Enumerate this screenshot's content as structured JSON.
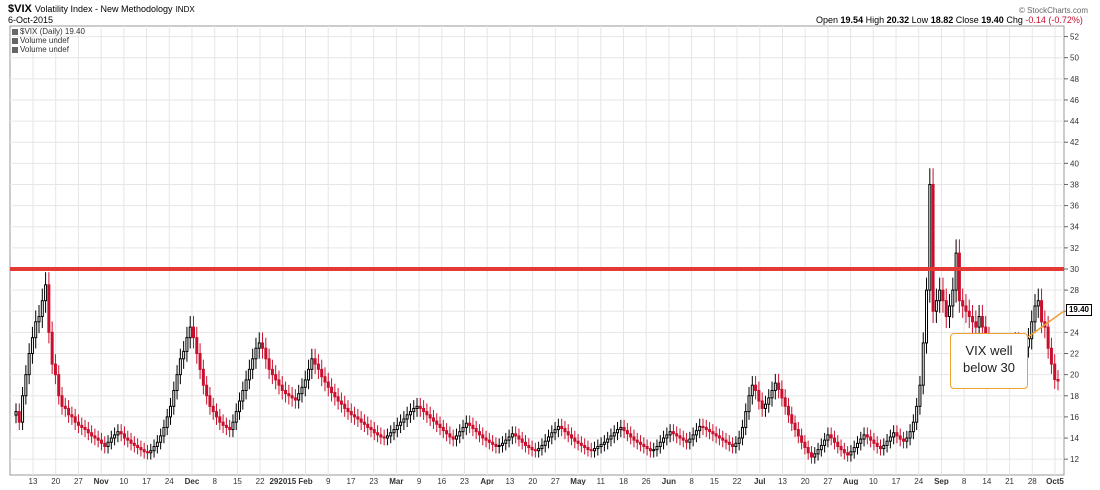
{
  "header": {
    "symbol": "$VIX",
    "name": "Volatility Index - New Methodology",
    "exchange": "INDX",
    "date": "6-Oct-2015",
    "open_label": "Open",
    "open": "19.54",
    "high_label": "High",
    "high": "20.32",
    "low_label": "Low",
    "low": "18.82",
    "close_label": "Close",
    "close": "19.40",
    "chg_label": "Chg",
    "chg": "-0.14 (-0.72%)",
    "copyright": "© StockCharts.com"
  },
  "legend": {
    "series": "$VIX (Daily) 19.40",
    "vol1": "Volume undef",
    "vol2": "Volume undef"
  },
  "annotation": {
    "line1": "VIX well",
    "line2": "below 30"
  },
  "colors": {
    "up_candle": "#000000",
    "down_candle": "#c8102e",
    "resistance": "#e53935",
    "annotation_border": "#f0a030",
    "grid": "#e6e6e6"
  },
  "chart_data": {
    "type": "candlestick",
    "ylim": [
      10.5,
      53
    ],
    "y_ticks": [
      12,
      14,
      16,
      18,
      20,
      22,
      24,
      26,
      28,
      30,
      32,
      34,
      36,
      38,
      40,
      42,
      44,
      46,
      48,
      50,
      52
    ],
    "last_value": "19.40",
    "horizontal_line": {
      "value": 30
    },
    "x_tick_labels": [
      "13",
      "20",
      "27",
      "Nov",
      "10",
      "17",
      "24",
      "Dec",
      "8",
      "15",
      "22",
      "292015",
      "Feb",
      "9",
      "17",
      "23",
      "Mar",
      "9",
      "16",
      "23",
      "Apr",
      "13",
      "20",
      "27",
      "May",
      "11",
      "18",
      "26",
      "Jun",
      "8",
      "15",
      "22",
      "Jul",
      "13",
      "20",
      "27",
      "Aug",
      "10",
      "17",
      "24",
      "Sep",
      "8",
      "14",
      "21",
      "28",
      "Oct5"
    ],
    "closes": [
      16.5,
      15.5,
      18,
      20,
      22,
      23.5,
      25,
      25.5,
      27,
      28.5,
      24,
      21,
      20,
      18,
      17,
      16.8,
      16.2,
      16,
      15.5,
      15.2,
      15,
      14.8,
      14.5,
      14.2,
      14,
      13.8,
      13.5,
      13.2,
      13.6,
      14,
      14.3,
      14.6,
      14.4,
      14,
      13.8,
      13.5,
      13.3,
      13.1,
      12.9,
      12.7,
      12.6,
      12.8,
      13.2,
      13.6,
      14.2,
      15,
      16,
      17,
      18.5,
      20,
      21.5,
      22.2,
      23.5,
      24.5,
      23.5,
      22,
      20.5,
      19,
      18,
      17,
      16.5,
      16,
      15.5,
      15.2,
      15,
      14.8,
      15.5,
      16.5,
      17.5,
      18.5,
      19.5,
      20.5,
      21.5,
      22.5,
      23,
      22.5,
      21.5,
      20.5,
      20,
      19.5,
      19,
      18.5,
      18.2,
      18,
      17.8,
      17.6,
      18.2,
      18.8,
      19.5,
      20.5,
      21.5,
      21,
      20.5,
      19.8,
      19.3,
      18.8,
      18.3,
      17.9,
      17.5,
      17.2,
      16.8,
      16.5,
      16.2,
      16,
      15.8,
      15.5,
      15.3,
      15,
      14.8,
      14.5,
      14.3,
      14.1,
      14,
      14.2,
      14.5,
      14.8,
      15.2,
      15.5,
      15.8,
      16.2,
      16.5,
      16.8,
      17,
      16.8,
      16.5,
      16.2,
      15.9,
      15.6,
      15.3,
      15,
      14.7,
      14.4,
      14.1,
      13.9,
      14.2,
      14.6,
      15,
      15.4,
      15.2,
      14.9,
      14.6,
      14.3,
      14,
      13.8,
      13.6,
      13.4,
      13.2,
      13.3,
      13.5,
      13.8,
      14.1,
      14.4,
      14.2,
      13.9,
      13.6,
      13.3,
      13.1,
      12.9,
      12.8,
      13,
      13.3,
      13.7,
      14.1,
      14.5,
      14.8,
      15.1,
      14.9,
      14.6,
      14.3,
      14,
      13.7,
      13.5,
      13.3,
      13.1,
      12.9,
      12.8,
      13,
      13.2,
      13.4,
      13.6,
      13.9,
      14.2,
      14.5,
      14.8,
      15,
      14.7,
      14.4,
      14.1,
      13.8,
      13.6,
      13.4,
      13.2,
      13,
      12.8,
      12.9,
      13.2,
      13.6,
      14,
      14.3,
      14.6,
      14.4,
      14.2,
      14,
      13.8,
      13.6,
      13.9,
      14.3,
      14.7,
      15.1,
      15,
      14.8,
      14.6,
      14.4,
      14.2,
      14,
      13.8,
      13.6,
      13.4,
      13.2,
      13.5,
      14,
      15,
      16.5,
      18,
      19,
      18.5,
      17.5,
      16.8,
      17.2,
      17.8,
      18.5,
      19.2,
      18.6,
      17.8,
      17,
      16.2,
      15.4,
      14.8,
      14.2,
      13.6,
      13.1,
      12.6,
      12.2,
      12.5,
      12.9,
      13.3,
      13.8,
      14.3,
      14,
      13.6,
      13.2,
      12.9,
      12.6,
      12.4,
      12.7,
      13.1,
      13.5,
      13.9,
      14.3,
      14.1,
      13.8,
      13.5,
      13.2,
      13,
      13.3,
      13.7,
      14.1,
      14.5,
      14.2,
      13.9,
      13.7,
      14,
      14.6,
      15.5,
      17,
      19,
      23,
      28,
      38,
      26,
      27,
      28,
      27,
      25.5,
      26.5,
      28,
      31.5,
      27,
      26.5,
      26,
      25.5,
      25,
      24.5,
      25.5,
      24.5,
      23.5,
      22.8,
      22.3,
      22.8,
      22.1,
      21.5,
      21,
      21.8,
      22.5,
      23,
      22.3,
      21.7,
      22.6,
      23.4,
      25,
      26.5,
      27,
      25,
      24.5,
      22.5,
      21,
      19.54,
      19.4
    ]
  }
}
